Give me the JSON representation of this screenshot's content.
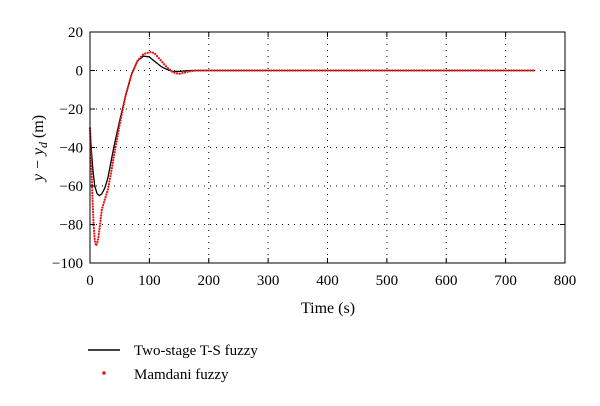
{
  "chart_data": {
    "type": "line",
    "xlabel": "Time (s)",
    "ylabel": {
      "main": "y − y",
      "sub": "d",
      "unit": " (m)"
    },
    "xlim": [
      0,
      800
    ],
    "ylim": [
      -100,
      20
    ],
    "x_ticks": [
      "0",
      "100",
      "200",
      "300",
      "400",
      "500",
      "600",
      "700",
      "800"
    ],
    "y_ticks": [
      "20",
      "0",
      "−20",
      "−40",
      "−60",
      "−80",
      "−100"
    ],
    "x_tick_values": [
      0,
      100,
      200,
      300,
      400,
      500,
      600,
      700,
      800
    ],
    "y_tick_values": [
      20,
      0,
      -20,
      -40,
      -60,
      -80,
      -100
    ],
    "grid": true,
    "legend_position": "below",
    "series": [
      {
        "name": "Two-stage T-S fuzzy",
        "style": "solid",
        "color": "#000000",
        "x": [
          0,
          2,
          5,
          8,
          12,
          16,
          20,
          25,
          30,
          35,
          40,
          50,
          60,
          70,
          80,
          90,
          100,
          110,
          120,
          130,
          140,
          150,
          160,
          170,
          180,
          200,
          300,
          400,
          500,
          600,
          700,
          750
        ],
        "y": [
          -30,
          -40,
          -52,
          -60,
          -64,
          -65,
          -64,
          -61,
          -56,
          -48,
          -40,
          -26,
          -13,
          -2,
          5,
          7.5,
          7,
          4.5,
          2,
          0.5,
          -0.5,
          -0.5,
          -0.2,
          0,
          0,
          0,
          0,
          0,
          0,
          0,
          0,
          0
        ]
      },
      {
        "name": "Mamdani fuzzy",
        "style": "dotted",
        "color": "#e8141c",
        "x": [
          0,
          2,
          4,
          6,
          8,
          10,
          12,
          14,
          17,
          20,
          25,
          30,
          35,
          40,
          50,
          60,
          70,
          80,
          90,
          100,
          105,
          110,
          120,
          130,
          140,
          150,
          160,
          170,
          180,
          200,
          300,
          400,
          500,
          600,
          700,
          750
        ],
        "y": [
          -30,
          -45,
          -65,
          -80,
          -88,
          -91,
          -90,
          -87,
          -80,
          -72,
          -67,
          -62,
          -54,
          -45,
          -28,
          -13,
          -2,
          5,
          8.5,
          9.5,
          9.5,
          8.5,
          5,
          1.5,
          -1,
          -1.8,
          -1,
          -0.3,
          0,
          0,
          0,
          0,
          0,
          0,
          0,
          0
        ]
      }
    ]
  }
}
